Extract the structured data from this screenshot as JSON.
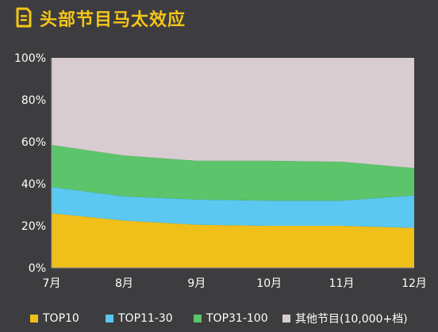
{
  "header": {
    "title": "头部节目马太效应"
  },
  "colors": {
    "accent": "#f5c518",
    "background": "#3d3d3f",
    "top10": "#f0bf1a",
    "top11_30": "#5ac8f0",
    "top31_100": "#5cc46a",
    "others": "#d9ccd0"
  },
  "chart_data": {
    "type": "area",
    "stacked": true,
    "title": "头部节目马太效应",
    "categories": [
      "7月",
      "8月",
      "9月",
      "10月",
      "11月",
      "12月"
    ],
    "y_tick_labels": [
      "0%",
      "20%",
      "40%",
      "60%",
      "80%",
      "100%"
    ],
    "ylim": [
      0,
      100
    ],
    "grid": false,
    "legend_position": "bottom",
    "series": [
      {
        "name": "TOP10",
        "values": [
          26,
          22.5,
          20.5,
          20,
          20,
          19
        ]
      },
      {
        "name": "TOP11-30",
        "values": [
          12.5,
          11.5,
          12,
          12,
          12,
          15.5
        ]
      },
      {
        "name": "TOP31-100",
        "values": [
          20,
          19.5,
          18.5,
          19,
          18.5,
          13
        ]
      },
      {
        "name": "其他节目(10,000+档)",
        "values": [
          41.5,
          46.5,
          49,
          49,
          49.5,
          52.5
        ]
      }
    ]
  }
}
